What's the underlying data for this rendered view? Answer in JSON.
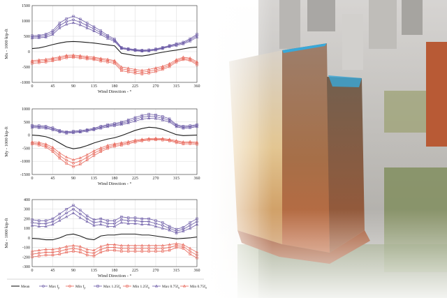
{
  "chart_data": [
    {
      "type": "line",
      "ylabel": "Mx - 1000 kip-ft",
      "xlabel": "Wind Direction - °",
      "xlim": [
        0,
        360
      ],
      "ylim": [
        -1000,
        1500
      ],
      "xticks": [
        0,
        45,
        90,
        135,
        180,
        225,
        270,
        315,
        360
      ],
      "yticks": [
        -1000,
        -500,
        0,
        500,
        1000,
        1500
      ],
      "x": [
        0,
        15,
        30,
        45,
        60,
        75,
        90,
        105,
        120,
        135,
        150,
        165,
        180,
        195,
        210,
        225,
        240,
        255,
        270,
        285,
        300,
        315,
        330,
        345,
        360
      ],
      "series": [
        {
          "name": "Mean",
          "values": [
            100,
            120,
            170,
            230,
            280,
            320,
            330,
            320,
            300,
            280,
            250,
            220,
            190,
            -50,
            -90,
            -130,
            -140,
            -110,
            -60,
            -20,
            20,
            50,
            90,
            130,
            150
          ]
        },
        {
          "name": "Max fp",
          "values": [
            480,
            490,
            520,
            620,
            850,
            980,
            1040,
            960,
            850,
            740,
            620,
            480,
            370,
            120,
            80,
            50,
            30,
            40,
            70,
            120,
            180,
            230,
            280,
            380,
            520
          ]
        },
        {
          "name": "Min fp",
          "values": [
            -330,
            -310,
            -290,
            -250,
            -210,
            -160,
            -150,
            -170,
            -200,
            -220,
            -260,
            -290,
            -330,
            -560,
            -600,
            -640,
            -670,
            -640,
            -590,
            -530,
            -440,
            -300,
            -220,
            -250,
            -380
          ]
        },
        {
          "name": "Max 1.25fn",
          "values": [
            520,
            530,
            570,
            680,
            930,
            1070,
            1150,
            1060,
            930,
            810,
            680,
            530,
            410,
            140,
            100,
            70,
            50,
            60,
            90,
            140,
            200,
            260,
            310,
            420,
            570
          ]
        },
        {
          "name": "Min 1.25fn",
          "values": [
            -380,
            -360,
            -340,
            -300,
            -260,
            -200,
            -190,
            -210,
            -240,
            -260,
            -310,
            -340,
            -380,
            -620,
            -660,
            -700,
            -730,
            -700,
            -650,
            -580,
            -490,
            -340,
            -260,
            -290,
            -430
          ]
        },
        {
          "name": "Max 0.75fn",
          "values": [
            440,
            450,
            470,
            560,
            770,
            890,
            940,
            870,
            770,
            670,
            560,
            430,
            330,
            100,
            60,
            30,
            10,
            20,
            50,
            100,
            160,
            200,
            250,
            340,
            470
          ]
        },
        {
          "name": "Min 0.75fn",
          "values": [
            -290,
            -270,
            -250,
            -210,
            -170,
            -120,
            -110,
            -130,
            -160,
            -180,
            -220,
            -250,
            -290,
            -500,
            -540,
            -580,
            -610,
            -580,
            -530,
            -480,
            -390,
            -260,
            -180,
            -210,
            -330
          ]
        }
      ]
    },
    {
      "type": "line",
      "ylabel": "My - 1000 kip-ft",
      "xlabel": "Wind Direction - °",
      "xlim": [
        0,
        360
      ],
      "ylim": [
        -1500,
        1000
      ],
      "xticks": [
        0,
        45,
        90,
        135,
        180,
        225,
        270,
        315,
        360
      ],
      "yticks": [
        -1500,
        -1000,
        -500,
        0,
        500,
        1000
      ],
      "x": [
        0,
        15,
        30,
        45,
        60,
        75,
        90,
        105,
        120,
        135,
        150,
        165,
        180,
        195,
        210,
        225,
        240,
        255,
        270,
        285,
        300,
        315,
        330,
        345,
        360
      ],
      "series": [
        {
          "name": "Mean",
          "values": [
            0,
            -20,
            -60,
            -150,
            -300,
            -450,
            -520,
            -480,
            -400,
            -300,
            -220,
            -150,
            -100,
            -20,
            80,
            180,
            250,
            300,
            280,
            220,
            120,
            20,
            -20,
            -10,
            0
          ]
        },
        {
          "name": "Max fp",
          "values": [
            330,
            320,
            300,
            240,
            150,
            100,
            120,
            140,
            180,
            230,
            300,
            360,
            400,
            450,
            520,
            600,
            680,
            720,
            700,
            640,
            560,
            360,
            300,
            320,
            360
          ]
        },
        {
          "name": "Min fp",
          "values": [
            -300,
            -330,
            -400,
            -550,
            -780,
            -960,
            -1070,
            -990,
            -850,
            -690,
            -560,
            -450,
            -380,
            -340,
            -290,
            -230,
            -190,
            -160,
            -150,
            -160,
            -190,
            -250,
            -300,
            -290,
            -310
          ]
        },
        {
          "name": "Max 1.25fn",
          "values": [
            370,
            360,
            340,
            280,
            180,
            130,
            150,
            170,
            210,
            260,
            340,
            400,
            440,
            500,
            580,
            670,
            750,
            800,
            770,
            710,
            620,
            400,
            340,
            360,
            400
          ]
        },
        {
          "name": "Min 1.25fn",
          "values": [
            -340,
            -380,
            -460,
            -630,
            -880,
            -1080,
            -1200,
            -1110,
            -950,
            -780,
            -630,
            -510,
            -430,
            -390,
            -330,
            -270,
            -220,
            -190,
            -180,
            -190,
            -220,
            -290,
            -340,
            -330,
            -350
          ]
        },
        {
          "name": "Max 0.75fn",
          "values": [
            290,
            280,
            260,
            200,
            120,
            70,
            90,
            110,
            150,
            200,
            260,
            320,
            360,
            400,
            460,
            530,
            610,
            640,
            630,
            570,
            500,
            320,
            260,
            280,
            320
          ]
        },
        {
          "name": "Min 0.75fn",
          "values": [
            -260,
            -280,
            -340,
            -470,
            -680,
            -840,
            -940,
            -870,
            -750,
            -600,
            -490,
            -390,
            -330,
            -290,
            -250,
            -190,
            -160,
            -130,
            -120,
            -130,
            -160,
            -210,
            -260,
            -250,
            -270
          ]
        }
      ]
    },
    {
      "type": "line",
      "ylabel": "Mz - 1000 kip-ft",
      "xlabel": "Wind Direction - °",
      "xlim": [
        0,
        360
      ],
      "ylim": [
        -300,
        400
      ],
      "xticks": [
        0,
        45,
        90,
        135,
        180,
        225,
        270,
        315,
        360
      ],
      "yticks": [
        -300,
        -200,
        -100,
        0,
        100,
        200,
        300,
        400
      ],
      "x": [
        0,
        15,
        30,
        45,
        60,
        75,
        90,
        105,
        120,
        135,
        150,
        165,
        180,
        195,
        210,
        225,
        240,
        255,
        270,
        285,
        300,
        315,
        330,
        345,
        360
      ],
      "series": [
        {
          "name": "Mean",
          "values": [
            -5,
            -10,
            -20,
            -20,
            0,
            30,
            40,
            20,
            -10,
            -20,
            20,
            30,
            30,
            40,
            40,
            40,
            30,
            30,
            20,
            10,
            0,
            -10,
            -5,
            0,
            10
          ]
        },
        {
          "name": "Max fp",
          "values": [
            160,
            150,
            150,
            170,
            210,
            260,
            300,
            250,
            200,
            160,
            170,
            150,
            150,
            190,
            180,
            180,
            170,
            170,
            150,
            130,
            100,
            70,
            90,
            130,
            170
          ]
        },
        {
          "name": "Min fp",
          "values": [
            -170,
            -160,
            -150,
            -150,
            -140,
            -120,
            -110,
            -120,
            -150,
            -160,
            -120,
            -100,
            -100,
            -110,
            -110,
            -110,
            -110,
            -110,
            -110,
            -110,
            -100,
            -80,
            -90,
            -140,
            -180
          ]
        },
        {
          "name": "Max 1.25fn",
          "values": [
            190,
            180,
            180,
            200,
            250,
            300,
            340,
            290,
            230,
            190,
            200,
            180,
            180,
            220,
            210,
            210,
            200,
            200,
            180,
            160,
            120,
            90,
            110,
            160,
            200
          ]
        },
        {
          "name": "Min 1.25fn",
          "values": [
            -200,
            -190,
            -180,
            -180,
            -170,
            -150,
            -140,
            -150,
            -180,
            -190,
            -150,
            -130,
            -130,
            -140,
            -140,
            -140,
            -140,
            -140,
            -140,
            -140,
            -130,
            -100,
            -110,
            -170,
            -210
          ]
        },
        {
          "name": "Max 0.75fn",
          "values": [
            130,
            120,
            120,
            140,
            180,
            220,
            260,
            210,
            170,
            130,
            140,
            120,
            120,
            160,
            150,
            150,
            140,
            140,
            120,
            100,
            80,
            50,
            70,
            100,
            140
          ]
        },
        {
          "name": "Min 0.75fn",
          "values": [
            -140,
            -130,
            -120,
            -120,
            -110,
            -90,
            -80,
            -90,
            -120,
            -130,
            -90,
            -70,
            -70,
            -80,
            -80,
            -80,
            -80,
            -80,
            -80,
            -80,
            -70,
            -60,
            -70,
            -110,
            -150
          ]
        }
      ]
    }
  ],
  "legend": {
    "placement": "bottom",
    "items": [
      {
        "label": "Mean",
        "sub": "",
        "color": "#1a1a1a",
        "marker": "none"
      },
      {
        "label": "Max f",
        "sub": "p",
        "color": "#6b5aa6",
        "marker": "circle"
      },
      {
        "label": "Min f",
        "sub": "p",
        "color": "#e8675a",
        "marker": "circle"
      },
      {
        "label": "Max 1.25f",
        "sub": "n",
        "color": "#6b5aa6",
        "marker": "square"
      },
      {
        "label": "Min 1.25f",
        "sub": "n",
        "color": "#e8675a",
        "marker": "square"
      },
      {
        "label": "Max 0.75f",
        "sub": "n",
        "color": "#6b5aa6",
        "marker": "triangle"
      },
      {
        "label": "Min 0.75f",
        "sub": "n",
        "color": "#e8675a",
        "marker": "triangle"
      }
    ]
  },
  "colors": {
    "mean": "#1a1a1a",
    "max": "#6b5aa6",
    "min": "#e8675a",
    "grid": "#d0d0d0",
    "photo_tower": "#b5653a"
  }
}
